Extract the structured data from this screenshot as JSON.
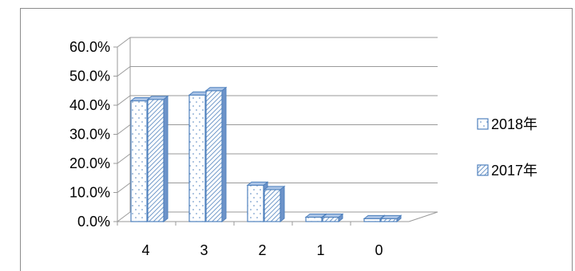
{
  "chart_data": {
    "type": "bar",
    "categories": [
      "4",
      "3",
      "2",
      "1",
      "0"
    ],
    "series": [
      {
        "name": "2018年",
        "values": [
          41.5,
          43.5,
          12.5,
          1.5,
          1.0
        ]
      },
      {
        "name": "2017年",
        "values": [
          42.0,
          45.0,
          11.0,
          1.5,
          1.0
        ]
      }
    ],
    "ylim": [
      0,
      60
    ],
    "yticks": [
      "0.0%",
      "10.0%",
      "20.0%",
      "30.0%",
      "40.0%",
      "50.0%",
      "60.0%"
    ],
    "grid": true,
    "legend_position": "right",
    "three_d": true,
    "colors": {
      "bar_face": "#ffffff",
      "bar_edge": "#4f81bd",
      "bar_side": "#6d93c9",
      "bar_top": "#a9c3e6",
      "grid": "#9a9a9a",
      "pattern": "#4f81bd"
    }
  }
}
